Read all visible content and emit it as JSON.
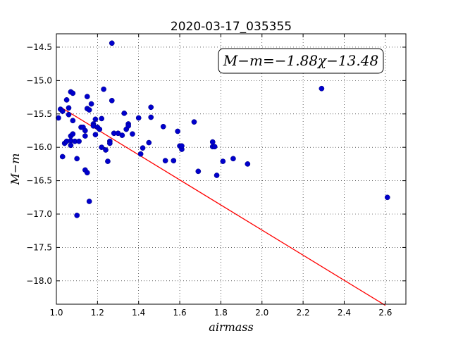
{
  "chart_data": {
    "type": "scatter",
    "title": "2020-03-17_035355",
    "xlabel": "airmass",
    "ylabel": "M−m",
    "xlim": [
      1.0,
      2.7
    ],
    "ylim": [
      -18.35,
      -14.3
    ],
    "x_ticks": [
      1.0,
      1.2,
      1.4,
      1.6,
      1.8,
      2.0,
      2.2,
      2.4,
      2.6
    ],
    "x_tick_labels": [
      "1.0",
      "1.2",
      "1.4",
      "1.6",
      "1.8",
      "2.0",
      "2.2",
      "2.4",
      "2.6"
    ],
    "y_ticks": [
      -14.5,
      -15.0,
      -15.5,
      -16.0,
      -16.5,
      -17.0,
      -17.5,
      -18.0
    ],
    "y_tick_labels": [
      "−14.5",
      "−15.0",
      "−15.5",
      "−16.0",
      "−16.5",
      "−17.0",
      "−17.5",
      "−18.0"
    ],
    "grid": true,
    "annotation": "M−m=−1.88χ−13.48",
    "fit_line": {
      "slope": -1.88,
      "intercept": -13.48,
      "x_range": [
        1.02,
        2.6
      ],
      "color": "#ff0000"
    },
    "point_color": "#0000cc",
    "points": [
      [
        1.01,
        -15.56
      ],
      [
        1.02,
        -15.43
      ],
      [
        1.03,
        -15.46
      ],
      [
        1.03,
        -16.14
      ],
      [
        1.04,
        -15.94
      ],
      [
        1.05,
        -15.29
      ],
      [
        1.05,
        -15.91
      ],
      [
        1.06,
        -15.41
      ],
      [
        1.06,
        -15.51
      ],
      [
        1.07,
        -15.17
      ],
      [
        1.07,
        -15.83
      ],
      [
        1.07,
        -15.9
      ],
      [
        1.07,
        -15.97
      ],
      [
        1.08,
        -15.19
      ],
      [
        1.08,
        -15.6
      ],
      [
        1.08,
        -15.8
      ],
      [
        1.09,
        -15.91
      ],
      [
        1.1,
        -16.17
      ],
      [
        1.1,
        -17.02
      ],
      [
        1.11,
        -15.91
      ],
      [
        1.12,
        -15.7
      ],
      [
        1.13,
        -15.7
      ],
      [
        1.14,
        -15.75
      ],
      [
        1.14,
        -15.83
      ],
      [
        1.14,
        -16.34
      ],
      [
        1.15,
        -16.38
      ],
      [
        1.15,
        -15.24
      ],
      [
        1.15,
        -15.42
      ],
      [
        1.16,
        -15.44
      ],
      [
        1.16,
        -16.81
      ],
      [
        1.17,
        -15.35
      ],
      [
        1.18,
        -15.65
      ],
      [
        1.18,
        -15.68
      ],
      [
        1.19,
        -15.58
      ],
      [
        1.19,
        -15.81
      ],
      [
        1.2,
        -15.7
      ],
      [
        1.21,
        -15.73
      ],
      [
        1.22,
        -15.57
      ],
      [
        1.22,
        -16.0
      ],
      [
        1.23,
        -15.13
      ],
      [
        1.24,
        -16.04
      ],
      [
        1.25,
        -16.21
      ],
      [
        1.26,
        -15.91
      ],
      [
        1.26,
        -15.94
      ],
      [
        1.27,
        -14.44
      ],
      [
        1.27,
        -15.3
      ],
      [
        1.28,
        -15.79
      ],
      [
        1.3,
        -15.79
      ],
      [
        1.32,
        -15.82
      ],
      [
        1.33,
        -15.49
      ],
      [
        1.34,
        -15.73
      ],
      [
        1.35,
        -15.65
      ],
      [
        1.35,
        -15.68
      ],
      [
        1.37,
        -15.8
      ],
      [
        1.4,
        -15.56
      ],
      [
        1.41,
        -16.1
      ],
      [
        1.42,
        -16.01
      ],
      [
        1.45,
        -15.93
      ],
      [
        1.46,
        -15.4
      ],
      [
        1.46,
        -15.55
      ],
      [
        1.52,
        -15.69
      ],
      [
        1.53,
        -16.2
      ],
      [
        1.57,
        -16.2
      ],
      [
        1.59,
        -15.76
      ],
      [
        1.6,
        -15.98
      ],
      [
        1.61,
        -16.03
      ],
      [
        1.61,
        -15.98
      ],
      [
        1.67,
        -15.62
      ],
      [
        1.69,
        -16.36
      ],
      [
        1.76,
        -15.99
      ],
      [
        1.76,
        -15.92
      ],
      [
        1.77,
        -15.99
      ],
      [
        1.78,
        -16.42
      ],
      [
        1.81,
        -16.21
      ],
      [
        1.86,
        -16.17
      ],
      [
        1.93,
        -16.25
      ],
      [
        2.29,
        -15.12
      ],
      [
        2.61,
        -16.75
      ]
    ]
  }
}
